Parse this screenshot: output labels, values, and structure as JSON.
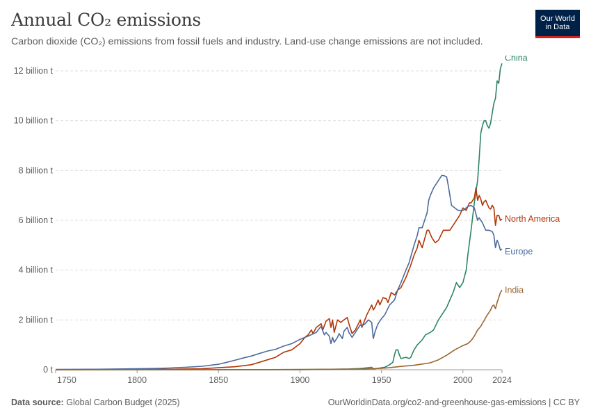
{
  "header": {
    "title": "Annual CO₂ emissions",
    "subtitle": "Carbon dioxide (CO₂) emissions from fossil fuels and industry. Land-use change emissions are not included."
  },
  "logo": {
    "line1": "Our World",
    "line2": "in Data",
    "bg_color": "#002147",
    "accent_color": "#ce261e"
  },
  "footer": {
    "source_label": "Data source:",
    "source_text": "Global Carbon Budget (2025)",
    "right_text": "OurWorldinData.org/co2-and-greenhouse-gas-emissions | CC BY"
  },
  "chart_data": {
    "type": "line",
    "title": "Annual CO₂ emissions",
    "xlabel": "",
    "ylabel": "",
    "xlim": [
      1750,
      2024
    ],
    "ylim": [
      0,
      12
    ],
    "x_ticks": [
      1750,
      1800,
      1850,
      1900,
      1950,
      2000,
      2024
    ],
    "x_tick_labels": [
      "1750",
      "1800",
      "1850",
      "1900",
      "1950",
      "2000",
      "2024"
    ],
    "y_ticks": [
      0,
      2,
      4,
      6,
      8,
      10,
      12
    ],
    "y_tick_labels": [
      "0 t",
      "2 billion t",
      "4 billion t",
      "6 billion t",
      "8 billion t",
      "10 billion t",
      "12 billion t"
    ],
    "grid": "horizontal dashed",
    "legend": "inline labels at line ends (right)",
    "series": [
      {
        "name": "China",
        "color": "#2c8465",
        "points": [
          [
            1750,
            0
          ],
          [
            1900,
            0
          ],
          [
            1910,
            0.01
          ],
          [
            1920,
            0.02
          ],
          [
            1930,
            0.03
          ],
          [
            1937,
            0.05
          ],
          [
            1940,
            0.07
          ],
          [
            1944,
            0.1
          ],
          [
            1945,
            0.03
          ],
          [
            1949,
            0.07
          ],
          [
            1952,
            0.1
          ],
          [
            1955,
            0.2
          ],
          [
            1957,
            0.3
          ],
          [
            1958,
            0.6
          ],
          [
            1959,
            0.8
          ],
          [
            1960,
            0.8
          ],
          [
            1961,
            0.6
          ],
          [
            1962,
            0.45
          ],
          [
            1965,
            0.5
          ],
          [
            1967,
            0.45
          ],
          [
            1968,
            0.5
          ],
          [
            1970,
            0.8
          ],
          [
            1972,
            1.0
          ],
          [
            1975,
            1.2
          ],
          [
            1977,
            1.4
          ],
          [
            1980,
            1.5
          ],
          [
            1982,
            1.6
          ],
          [
            1985,
            2.0
          ],
          [
            1990,
            2.5
          ],
          [
            1994,
            3.1
          ],
          [
            1996,
            3.5
          ],
          [
            1998,
            3.3
          ],
          [
            2000,
            3.5
          ],
          [
            2002,
            4.0
          ],
          [
            2003,
            4.6
          ],
          [
            2005,
            5.6
          ],
          [
            2007,
            6.7
          ],
          [
            2009,
            7.6
          ],
          [
            2010,
            8.5
          ],
          [
            2011,
            9.5
          ],
          [
            2012,
            9.8
          ],
          [
            2013,
            10.0
          ],
          [
            2014,
            10.0
          ],
          [
            2015,
            9.8
          ],
          [
            2016,
            9.7
          ],
          [
            2017,
            9.9
          ],
          [
            2018,
            10.3
          ],
          [
            2019,
            10.7
          ],
          [
            2020,
            10.9
          ],
          [
            2021,
            11.6
          ],
          [
            2022,
            11.5
          ],
          [
            2023,
            12.1
          ],
          [
            2024,
            12.3
          ]
        ]
      },
      {
        "name": "North America",
        "color": "#b13507",
        "points": [
          [
            1750,
            0
          ],
          [
            1790,
            0.01
          ],
          [
            1820,
            0.02
          ],
          [
            1840,
            0.04
          ],
          [
            1850,
            0.08
          ],
          [
            1860,
            0.12
          ],
          [
            1870,
            0.2
          ],
          [
            1875,
            0.3
          ],
          [
            1880,
            0.4
          ],
          [
            1885,
            0.5
          ],
          [
            1890,
            0.7
          ],
          [
            1895,
            0.8
          ],
          [
            1900,
            1.05
          ],
          [
            1903,
            1.3
          ],
          [
            1905,
            1.4
          ],
          [
            1907,
            1.6
          ],
          [
            1908,
            1.45
          ],
          [
            1910,
            1.7
          ],
          [
            1913,
            1.85
          ],
          [
            1914,
            1.6
          ],
          [
            1916,
            1.95
          ],
          [
            1918,
            2.05
          ],
          [
            1919,
            1.7
          ],
          [
            1920,
            2.0
          ],
          [
            1921,
            1.5
          ],
          [
            1923,
            2.0
          ],
          [
            1925,
            1.9
          ],
          [
            1927,
            2.0
          ],
          [
            1929,
            2.1
          ],
          [
            1930,
            1.85
          ],
          [
            1932,
            1.45
          ],
          [
            1934,
            1.6
          ],
          [
            1937,
            2.0
          ],
          [
            1938,
            1.7
          ],
          [
            1941,
            2.2
          ],
          [
            1944,
            2.6
          ],
          [
            1945,
            2.4
          ],
          [
            1946,
            2.5
          ],
          [
            1948,
            2.8
          ],
          [
            1949,
            2.6
          ],
          [
            1951,
            2.9
          ],
          [
            1953,
            2.85
          ],
          [
            1954,
            2.7
          ],
          [
            1956,
            3.1
          ],
          [
            1958,
            3.0
          ],
          [
            1960,
            3.2
          ],
          [
            1962,
            3.3
          ],
          [
            1965,
            3.7
          ],
          [
            1968,
            4.2
          ],
          [
            1970,
            4.6
          ],
          [
            1972,
            4.9
          ],
          [
            1973,
            5.2
          ],
          [
            1975,
            4.9
          ],
          [
            1978,
            5.6
          ],
          [
            1979,
            5.6
          ],
          [
            1981,
            5.3
          ],
          [
            1983,
            5.1
          ],
          [
            1985,
            5.2
          ],
          [
            1988,
            5.6
          ],
          [
            1990,
            5.6
          ],
          [
            1992,
            5.6
          ],
          [
            1995,
            5.9
          ],
          [
            1998,
            6.2
          ],
          [
            2000,
            6.5
          ],
          [
            2002,
            6.4
          ],
          [
            2004,
            6.7
          ],
          [
            2005,
            6.7
          ],
          [
            2007,
            6.9
          ],
          [
            2008,
            7.3
          ],
          [
            2009,
            6.8
          ],
          [
            2010,
            7.0
          ],
          [
            2011,
            6.85
          ],
          [
            2012,
            6.6
          ],
          [
            2013,
            6.75
          ],
          [
            2014,
            6.8
          ],
          [
            2015,
            6.65
          ],
          [
            2016,
            6.5
          ],
          [
            2017,
            6.45
          ],
          [
            2018,
            6.6
          ],
          [
            2019,
            6.5
          ],
          [
            2020,
            5.8
          ],
          [
            2021,
            6.2
          ],
          [
            2022,
            6.2
          ],
          [
            2023,
            6.0
          ],
          [
            2024,
            6.05
          ]
        ]
      },
      {
        "name": "Europe",
        "color": "#4c6a9c",
        "points": [
          [
            1750,
            0.01
          ],
          [
            1775,
            0.02
          ],
          [
            1800,
            0.04
          ],
          [
            1810,
            0.05
          ],
          [
            1820,
            0.07
          ],
          [
            1830,
            0.1
          ],
          [
            1840,
            0.14
          ],
          [
            1850,
            0.22
          ],
          [
            1855,
            0.3
          ],
          [
            1860,
            0.38
          ],
          [
            1865,
            0.47
          ],
          [
            1870,
            0.55
          ],
          [
            1875,
            0.65
          ],
          [
            1880,
            0.75
          ],
          [
            1885,
            0.82
          ],
          [
            1890,
            0.95
          ],
          [
            1895,
            1.05
          ],
          [
            1900,
            1.22
          ],
          [
            1905,
            1.35
          ],
          [
            1910,
            1.5
          ],
          [
            1913,
            1.75
          ],
          [
            1914,
            1.55
          ],
          [
            1915,
            1.4
          ],
          [
            1916,
            1.5
          ],
          [
            1918,
            1.35
          ],
          [
            1919,
            1.05
          ],
          [
            1920,
            1.3
          ],
          [
            1921,
            1.1
          ],
          [
            1923,
            1.3
          ],
          [
            1924,
            1.45
          ],
          [
            1926,
            1.25
          ],
          [
            1927,
            1.55
          ],
          [
            1929,
            1.7
          ],
          [
            1930,
            1.5
          ],
          [
            1932,
            1.3
          ],
          [
            1934,
            1.5
          ],
          [
            1937,
            1.8
          ],
          [
            1938,
            1.75
          ],
          [
            1940,
            1.85
          ],
          [
            1942,
            2.0
          ],
          [
            1944,
            1.9
          ],
          [
            1945,
            1.25
          ],
          [
            1946,
            1.5
          ],
          [
            1947,
            1.7
          ],
          [
            1948,
            1.85
          ],
          [
            1950,
            2.05
          ],
          [
            1952,
            2.2
          ],
          [
            1955,
            2.6
          ],
          [
            1958,
            2.8
          ],
          [
            1960,
            3.2
          ],
          [
            1962,
            3.5
          ],
          [
            1965,
            4.0
          ],
          [
            1967,
            4.3
          ],
          [
            1970,
            5.0
          ],
          [
            1972,
            5.4
          ],
          [
            1973,
            5.7
          ],
          [
            1975,
            5.7
          ],
          [
            1978,
            6.3
          ],
          [
            1979,
            6.8
          ],
          [
            1980,
            7.0
          ],
          [
            1982,
            7.3
          ],
          [
            1985,
            7.6
          ],
          [
            1987,
            7.8
          ],
          [
            1988,
            7.8
          ],
          [
            1990,
            7.75
          ],
          [
            1991,
            7.4
          ],
          [
            1993,
            6.6
          ],
          [
            1995,
            6.5
          ],
          [
            1997,
            6.4
          ],
          [
            2000,
            6.4
          ],
          [
            2003,
            6.55
          ],
          [
            2005,
            6.6
          ],
          [
            2007,
            6.5
          ],
          [
            2009,
            6.0
          ],
          [
            2010,
            6.1
          ],
          [
            2012,
            5.9
          ],
          [
            2014,
            5.6
          ],
          [
            2016,
            5.6
          ],
          [
            2018,
            5.55
          ],
          [
            2019,
            5.4
          ],
          [
            2020,
            4.9
          ],
          [
            2021,
            5.2
          ],
          [
            2022,
            5.05
          ],
          [
            2023,
            4.8
          ],
          [
            2024,
            4.85
          ]
        ]
      },
      {
        "name": "India",
        "color": "#9a652e",
        "points": [
          [
            1750,
            0
          ],
          [
            1880,
            0.005
          ],
          [
            1900,
            0.01
          ],
          [
            1920,
            0.02
          ],
          [
            1940,
            0.03
          ],
          [
            1950,
            0.06
          ],
          [
            1955,
            0.08
          ],
          [
            1960,
            0.12
          ],
          [
            1965,
            0.15
          ],
          [
            1970,
            0.18
          ],
          [
            1975,
            0.23
          ],
          [
            1980,
            0.28
          ],
          [
            1985,
            0.4
          ],
          [
            1990,
            0.58
          ],
          [
            1995,
            0.8
          ],
          [
            2000,
            0.97
          ],
          [
            2003,
            1.05
          ],
          [
            2005,
            1.17
          ],
          [
            2007,
            1.35
          ],
          [
            2009,
            1.6
          ],
          [
            2010,
            1.67
          ],
          [
            2011,
            1.74
          ],
          [
            2012,
            1.87
          ],
          [
            2013,
            1.97
          ],
          [
            2014,
            2.1
          ],
          [
            2015,
            2.2
          ],
          [
            2016,
            2.3
          ],
          [
            2017,
            2.4
          ],
          [
            2018,
            2.55
          ],
          [
            2019,
            2.6
          ],
          [
            2020,
            2.45
          ],
          [
            2021,
            2.7
          ],
          [
            2022,
            2.9
          ],
          [
            2023,
            3.1
          ],
          [
            2024,
            3.2
          ]
        ]
      }
    ]
  }
}
